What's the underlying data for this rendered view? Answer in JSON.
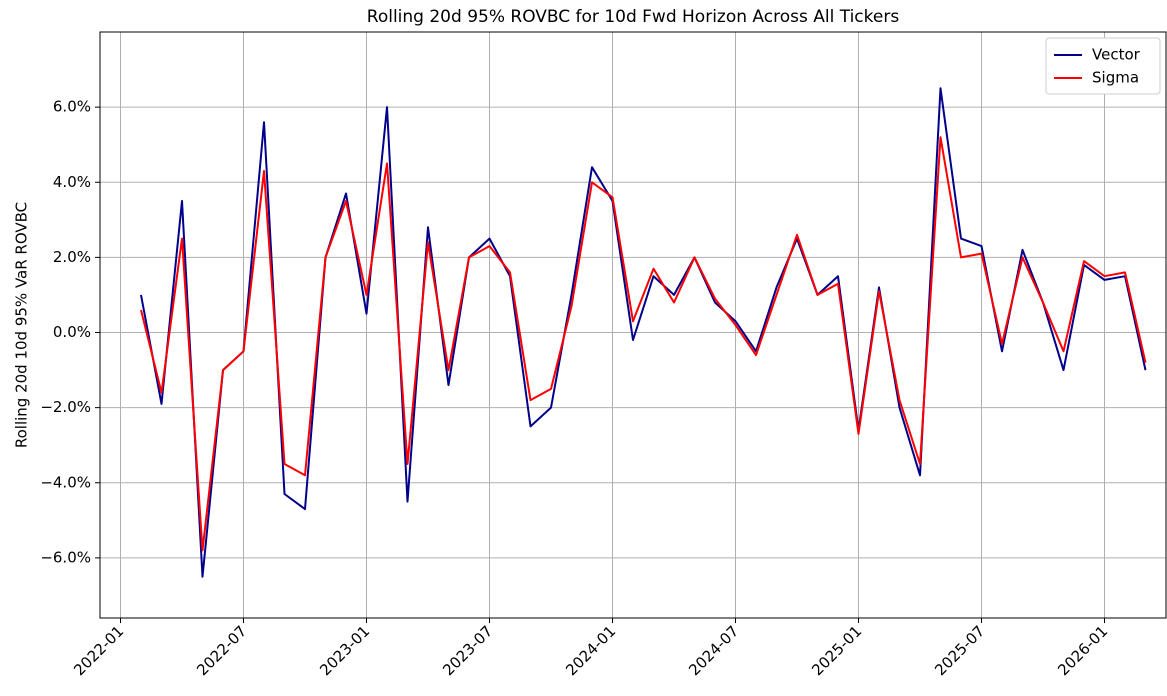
{
  "chart_data": {
    "type": "line",
    "title": "Rolling 20d 95% ROVBC for 10d Fwd Horizon Across All Tickers",
    "y_label": "Rolling 20d 10d 95% VaR ROVBC",
    "x": [
      "2022-02",
      "2022-03",
      "2022-04",
      "2022-05",
      "2022-06",
      "2022-07",
      "2022-08",
      "2022-09",
      "2022-10",
      "2022-11",
      "2022-12",
      "2023-01",
      "2023-02",
      "2023-03",
      "2023-04",
      "2023-05",
      "2023-06",
      "2023-07",
      "2023-08",
      "2023-09",
      "2023-10",
      "2023-11",
      "2023-12",
      "2024-01",
      "2024-02",
      "2024-03",
      "2024-04",
      "2024-05",
      "2024-06",
      "2024-07",
      "2024-08",
      "2024-09",
      "2024-10",
      "2024-11",
      "2024-12",
      "2025-01",
      "2025-02",
      "2025-03",
      "2025-04",
      "2025-05",
      "2025-06",
      "2025-07",
      "2025-08",
      "2025-09",
      "2025-10",
      "2025-11",
      "2025-12",
      "2026-01",
      "2026-02",
      "2026-03"
    ],
    "series": [
      {
        "name": "Vector",
        "color": "#00008b",
        "values": [
          1.0,
          -1.9,
          3.5,
          -6.5,
          -1.0,
          -0.5,
          5.6,
          -4.3,
          -4.7,
          2.0,
          3.7,
          0.5,
          6.0,
          -4.5,
          2.8,
          -1.4,
          2.0,
          2.5,
          1.5,
          -2.5,
          -2.0,
          1.0,
          4.4,
          3.5,
          -0.2,
          1.5,
          1.0,
          2.0,
          0.8,
          0.3,
          -0.5,
          1.2,
          2.5,
          1.0,
          1.5,
          -2.6,
          1.2,
          -2.0,
          -3.8,
          6.5,
          2.5,
          2.3,
          -0.5,
          2.2,
          0.8,
          -1.0,
          1.8,
          1.4,
          1.5,
          -1.0
        ]
      },
      {
        "name": "Sigma",
        "color": "#ff0000",
        "values": [
          0.6,
          -1.6,
          2.5,
          -5.8,
          -1.0,
          -0.5,
          4.3,
          -3.5,
          -3.8,
          2.0,
          3.5,
          1.0,
          4.5,
          -3.5,
          2.4,
          -1.0,
          2.0,
          2.3,
          1.6,
          -1.8,
          -1.5,
          0.7,
          4.0,
          3.6,
          0.3,
          1.7,
          0.8,
          2.0,
          0.9,
          0.2,
          -0.6,
          1.0,
          2.6,
          1.0,
          1.3,
          -2.7,
          1.1,
          -1.8,
          -3.5,
          5.2,
          2.0,
          2.1,
          -0.3,
          2.0,
          0.8,
          -0.5,
          1.9,
          1.5,
          1.6,
          -0.8
        ]
      }
    ],
    "xlim": [
      "2021-12",
      "2026-04"
    ],
    "xticks": [
      "2022-01",
      "2022-07",
      "2023-01",
      "2023-07",
      "2024-01",
      "2024-07",
      "2025-01",
      "2025-07",
      "2026-01"
    ],
    "ylim": [
      -7.6,
      8.0
    ],
    "yticks": [
      {
        "value": -6,
        "label": "−6.0%"
      },
      {
        "value": -4,
        "label": "−4.0%"
      },
      {
        "value": -2,
        "label": "−2.0%"
      },
      {
        "value": 0,
        "label": "0.0%"
      },
      {
        "value": 2,
        "label": "2.0%"
      },
      {
        "value": 4,
        "label": "4.0%"
      },
      {
        "value": 6,
        "label": "6.0%"
      }
    ],
    "grid": true,
    "legend": "upper right"
  }
}
